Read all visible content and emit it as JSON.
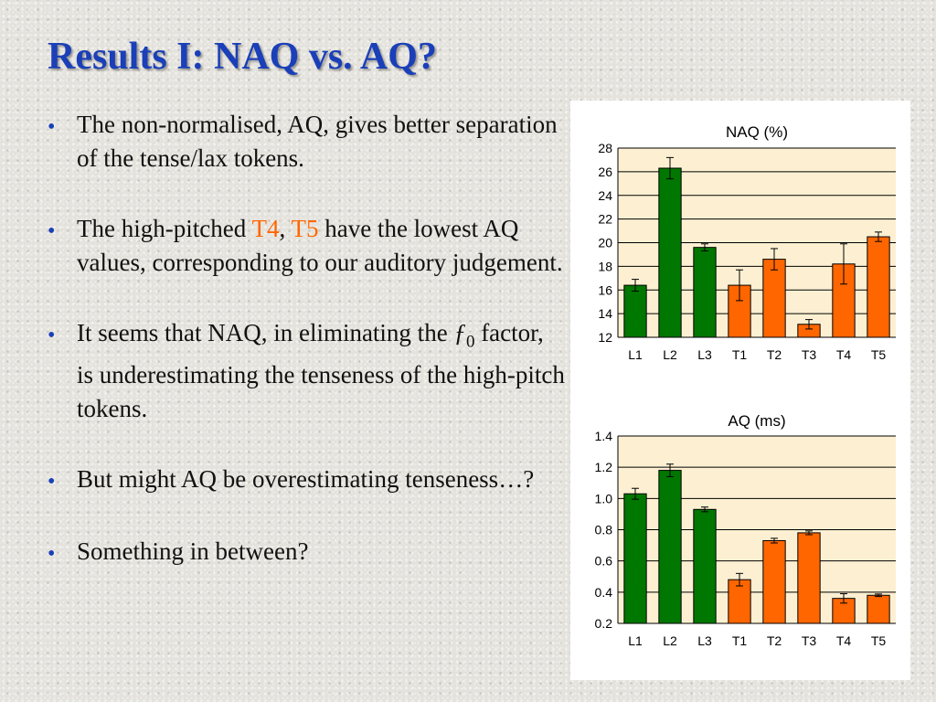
{
  "slide": {
    "title": "Results I:  NAQ vs. AQ?",
    "bullets": [
      {
        "text": "The non-normalised, AQ, gives better separation of the tense/lax tokens."
      },
      {
        "before": "The high-pitched ",
        "hl1": "T4",
        "comma": ", ",
        "hl2": "T5",
        "after": " have the lowest AQ values, corresponding to our auditory judgement."
      },
      {
        "before": "It seems that NAQ, in eliminating the ",
        "f": "ƒ",
        "sub": "0",
        "after": " factor, is underestimating the tenseness of the high-pitch tokens."
      },
      {
        "text": "But might AQ be overestimating tenseness…?"
      },
      {
        "text": "Something in between?"
      }
    ],
    "bullet_symbol": "•",
    "highlight_color": "#ff6600",
    "title_color": "#1a3fb8"
  },
  "chart_data": [
    {
      "type": "bar",
      "title": "NAQ  (%)",
      "categories": [
        "L1",
        "L2",
        "L3",
        "T1",
        "T2",
        "T3",
        "T4",
        "T5"
      ],
      "values": [
        16.4,
        26.3,
        19.6,
        16.4,
        18.6,
        13.1,
        18.2,
        20.5
      ],
      "errors": [
        0.5,
        0.9,
        0.3,
        1.3,
        0.9,
        0.4,
        1.7,
        0.4
      ],
      "colors": [
        "#007700",
        "#007700",
        "#007700",
        "#ff6600",
        "#ff6600",
        "#ff6600",
        "#ff6600",
        "#ff6600"
      ],
      "ylim": [
        12,
        28
      ],
      "yticks": [
        "12",
        "14",
        "16",
        "18",
        "20",
        "22",
        "24",
        "26",
        "28"
      ],
      "grid": true
    },
    {
      "type": "bar",
      "title": "AQ  (ms)",
      "categories": [
        "L1",
        "L2",
        "L3",
        "T1",
        "T2",
        "T3",
        "T4",
        "T5"
      ],
      "values": [
        1.03,
        1.18,
        0.93,
        0.48,
        0.73,
        0.78,
        0.36,
        0.38
      ],
      "errors": [
        0.035,
        0.04,
        0.015,
        0.04,
        0.015,
        0.012,
        0.03,
        0.008
      ],
      "colors": [
        "#007700",
        "#007700",
        "#007700",
        "#ff6600",
        "#ff6600",
        "#ff6600",
        "#ff6600",
        "#ff6600"
      ],
      "ylim": [
        0.2,
        1.4
      ],
      "yticks": [
        "0.2",
        "0.4",
        "0.6",
        "0.8",
        "1.0",
        "1.2",
        "1.4"
      ],
      "grid": true
    }
  ]
}
